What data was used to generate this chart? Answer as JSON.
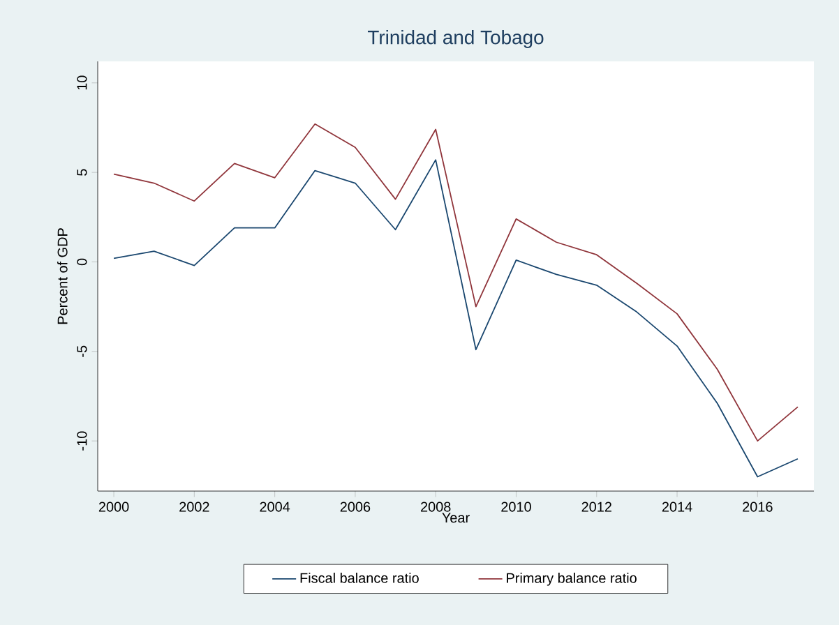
{
  "chart_data": {
    "type": "line",
    "title": "Trinidad and Tobago",
    "xlabel": "Year",
    "ylabel": "Percent of GDP",
    "x": [
      2000,
      2001,
      2002,
      2003,
      2004,
      2005,
      2006,
      2007,
      2008,
      2009,
      2010,
      2011,
      2012,
      2013,
      2014,
      2015,
      2016,
      2017
    ],
    "series": [
      {
        "name": "Fiscal balance ratio",
        "color": "#1a476f",
        "values": [
          0.2,
          0.6,
          -0.2,
          1.9,
          1.9,
          5.1,
          4.4,
          1.8,
          5.7,
          -4.9,
          0.1,
          -0.7,
          -1.3,
          -2.8,
          -4.7,
          -7.9,
          -12.0,
          -11.0
        ]
      },
      {
        "name": "Primary balance ratio",
        "color": "#90353b",
        "values": [
          4.9,
          4.4,
          3.4,
          5.5,
          4.7,
          7.7,
          6.4,
          3.5,
          7.4,
          -2.5,
          2.4,
          1.1,
          0.4,
          -1.2,
          -2.9,
          -6.0,
          -10.0,
          -8.1
        ]
      }
    ],
    "xlim": [
      1999.6,
      2017.4
    ],
    "ylim": [
      -12.8,
      11.2
    ],
    "xticks": [
      2000,
      2002,
      2004,
      2006,
      2008,
      2010,
      2012,
      2014,
      2016
    ],
    "yticks": [
      -10,
      -5,
      0,
      5,
      10
    ],
    "grid": false,
    "legend": "bottom",
    "marker": "none",
    "line_style": "solid"
  }
}
